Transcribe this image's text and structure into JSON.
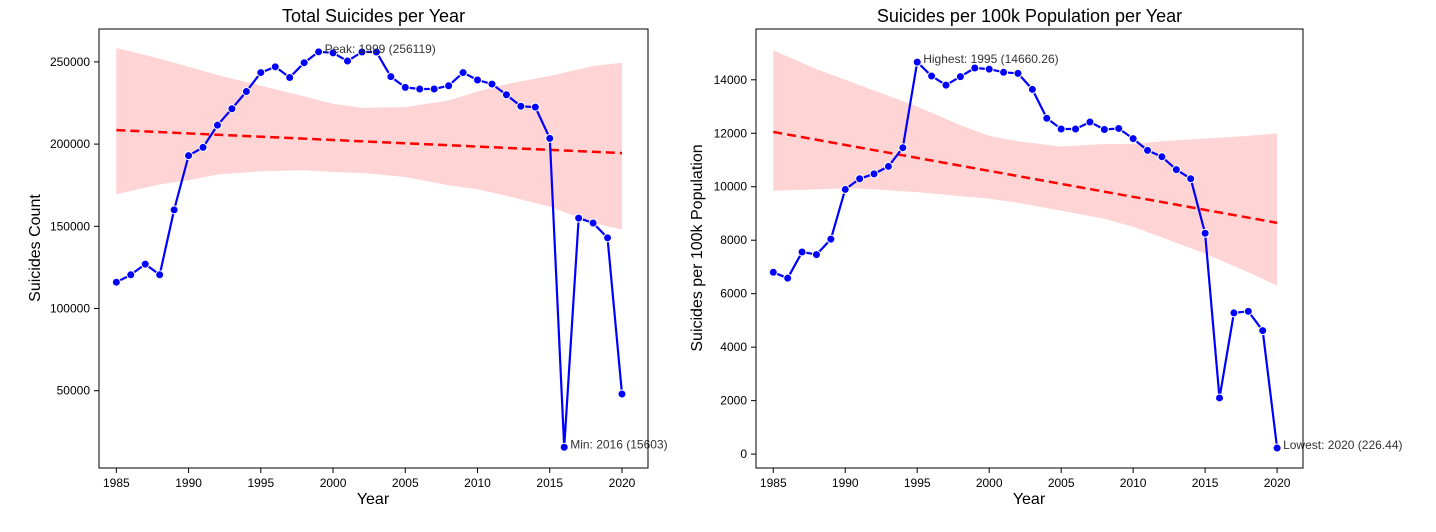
{
  "chart_data": [
    {
      "type": "line",
      "title": "Total Suicides per Year",
      "xlabel": "Year",
      "ylabel": "Suicides Count",
      "xlim": [
        1983.8,
        2021.8
      ],
      "ylim": [
        3000,
        270000
      ],
      "xticks": [
        1985,
        1990,
        1995,
        2000,
        2005,
        2010,
        2015,
        2020
      ],
      "yticks": [
        50000,
        100000,
        150000,
        200000,
        250000
      ],
      "grid": false,
      "colors": {
        "line": "#0000ff",
        "marker_edge": "#ffffff",
        "trend": "#ff0000",
        "band": "#ffcccc"
      },
      "x": [
        1985,
        1986,
        1987,
        1988,
        1989,
        1990,
        1991,
        1992,
        1993,
        1994,
        1995,
        1996,
        1997,
        1998,
        1999,
        2000,
        2001,
        2002,
        2003,
        2004,
        2005,
        2006,
        2007,
        2008,
        2009,
        2010,
        2011,
        2012,
        2013,
        2014,
        2015,
        2016,
        2017,
        2018,
        2019,
        2020
      ],
      "series": [
        {
          "values": [
            116000,
            120500,
            127000,
            120500,
            160000,
            193000,
            198000,
            211500,
            221500,
            232000,
            243500,
            247000,
            240500,
            249500,
            256119,
            255500,
            250500,
            256000,
            256000,
            241000,
            234500,
            233500,
            233500,
            235500,
            243500,
            239000,
            236500,
            230000,
            223000,
            222500,
            203500,
            15603,
            155000,
            152000,
            143000,
            48000
          ]
        }
      ],
      "trend": {
        "x": [
          1985,
          2020
        ],
        "y": [
          208500,
          194500
        ]
      },
      "confidence_band": {
        "x": [
          1985,
          1988,
          1990,
          1992,
          1995,
          1998,
          2000,
          2002,
          2005,
          2008,
          2010,
          2012,
          2015,
          2018,
          2020
        ],
        "upper": [
          258500,
          252000,
          247000,
          242000,
          235500,
          229000,
          224500,
          222000,
          222500,
          226500,
          232000,
          236500,
          241500,
          247500,
          249500
        ],
        "lower": [
          169500,
          175500,
          178000,
          181500,
          183500,
          184000,
          183000,
          182500,
          180000,
          175000,
          172500,
          168500,
          162000,
          152000,
          148000
        ]
      },
      "annotations": [
        {
          "text": "Peak: 1999 (256119)",
          "x": 1999,
          "y": 256119
        },
        {
          "text": "Min: 2016 (15603)",
          "x": 2016,
          "y": 15603
        }
      ]
    },
    {
      "type": "line",
      "title": "Suicides per 100k Population per Year",
      "xlabel": "Year",
      "ylabel": "Suicides per 100k Population",
      "xlim": [
        1983.8,
        2021.8
      ],
      "ylim": [
        -520,
        15900
      ],
      "xticks": [
        1985,
        1990,
        1995,
        2000,
        2005,
        2010,
        2015,
        2020
      ],
      "yticks": [
        0,
        2000,
        4000,
        6000,
        8000,
        10000,
        12000,
        14000
      ],
      "grid": false,
      "colors": {
        "line": "#0000ff",
        "marker_edge": "#ffffff",
        "trend": "#ff0000",
        "band": "#ffcccc"
      },
      "x": [
        1985,
        1986,
        1987,
        1988,
        1989,
        1990,
        1991,
        1992,
        1993,
        1994,
        1995,
        1996,
        1997,
        1998,
        1999,
        2000,
        2001,
        2002,
        2003,
        2004,
        2005,
        2006,
        2007,
        2008,
        2009,
        2010,
        2011,
        2012,
        2013,
        2014,
        2015,
        2016,
        2017,
        2018,
        2019,
        2020
      ],
      "series": [
        {
          "values": [
            6800,
            6580,
            7560,
            7460,
            8040,
            9900,
            10300,
            10480,
            10760,
            11460,
            14660.26,
            14140,
            13800,
            14120,
            14440,
            14400,
            14280,
            14240,
            13640,
            12560,
            12160,
            12160,
            12420,
            12140,
            12180,
            11800,
            11360,
            11120,
            10640,
            10300,
            8260,
            2100,
            5280,
            5340,
            4620,
            226.44
          ]
        }
      ],
      "trend": {
        "x": [
          1985,
          2020
        ],
        "y": [
          12050,
          8650
        ]
      },
      "confidence_band": {
        "x": [
          1985,
          1988,
          1990,
          1992,
          1995,
          1998,
          2000,
          2002,
          2005,
          2008,
          2010,
          2012,
          2015,
          2018,
          2020
        ],
        "upper": [
          15100,
          14400,
          14000,
          13600,
          13000,
          12300,
          11900,
          11700,
          11500,
          11600,
          11600,
          11700,
          11800,
          11900,
          12000
        ],
        "lower": [
          9850,
          9900,
          9950,
          9900,
          9800,
          9650,
          9550,
          9400,
          9100,
          8800,
          8500,
          8100,
          7500,
          6800,
          6300
        ]
      },
      "annotations": [
        {
          "text": "Highest: 1995 (14660.26)",
          "x": 1995,
          "y": 14660.26
        },
        {
          "text": "Lowest: 2020 (226.44)",
          "x": 2020,
          "y": 226.44
        }
      ]
    }
  ]
}
